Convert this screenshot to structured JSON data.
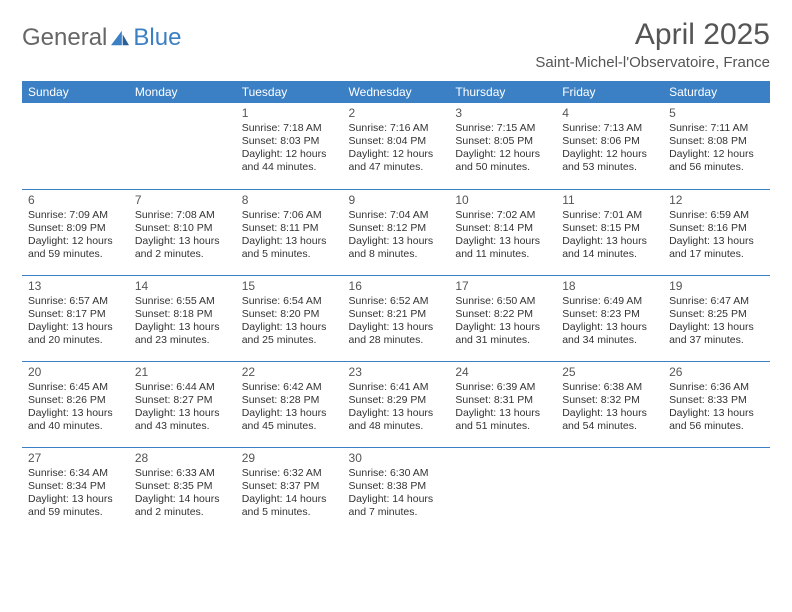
{
  "brand": {
    "part1": "General",
    "part2": "Blue"
  },
  "title": "April 2025",
  "location": "Saint-Michel-l'Observatoire, France",
  "colors": {
    "header_bg": "#3b7fc4",
    "header_text": "#ffffff",
    "body_text": "#333333",
    "title_text": "#555555",
    "rule": "#3b7fc4",
    "page_bg": "#ffffff"
  },
  "day_headers": [
    "Sunday",
    "Monday",
    "Tuesday",
    "Wednesday",
    "Thursday",
    "Friday",
    "Saturday"
  ],
  "weeks": [
    [
      null,
      null,
      {
        "n": "1",
        "sr": "Sunrise: 7:18 AM",
        "ss": "Sunset: 8:03 PM",
        "d1": "Daylight: 12 hours",
        "d2": "and 44 minutes."
      },
      {
        "n": "2",
        "sr": "Sunrise: 7:16 AM",
        "ss": "Sunset: 8:04 PM",
        "d1": "Daylight: 12 hours",
        "d2": "and 47 minutes."
      },
      {
        "n": "3",
        "sr": "Sunrise: 7:15 AM",
        "ss": "Sunset: 8:05 PM",
        "d1": "Daylight: 12 hours",
        "d2": "and 50 minutes."
      },
      {
        "n": "4",
        "sr": "Sunrise: 7:13 AM",
        "ss": "Sunset: 8:06 PM",
        "d1": "Daylight: 12 hours",
        "d2": "and 53 minutes."
      },
      {
        "n": "5",
        "sr": "Sunrise: 7:11 AM",
        "ss": "Sunset: 8:08 PM",
        "d1": "Daylight: 12 hours",
        "d2": "and 56 minutes."
      }
    ],
    [
      {
        "n": "6",
        "sr": "Sunrise: 7:09 AM",
        "ss": "Sunset: 8:09 PM",
        "d1": "Daylight: 12 hours",
        "d2": "and 59 minutes."
      },
      {
        "n": "7",
        "sr": "Sunrise: 7:08 AM",
        "ss": "Sunset: 8:10 PM",
        "d1": "Daylight: 13 hours",
        "d2": "and 2 minutes."
      },
      {
        "n": "8",
        "sr": "Sunrise: 7:06 AM",
        "ss": "Sunset: 8:11 PM",
        "d1": "Daylight: 13 hours",
        "d2": "and 5 minutes."
      },
      {
        "n": "9",
        "sr": "Sunrise: 7:04 AM",
        "ss": "Sunset: 8:12 PM",
        "d1": "Daylight: 13 hours",
        "d2": "and 8 minutes."
      },
      {
        "n": "10",
        "sr": "Sunrise: 7:02 AM",
        "ss": "Sunset: 8:14 PM",
        "d1": "Daylight: 13 hours",
        "d2": "and 11 minutes."
      },
      {
        "n": "11",
        "sr": "Sunrise: 7:01 AM",
        "ss": "Sunset: 8:15 PM",
        "d1": "Daylight: 13 hours",
        "d2": "and 14 minutes."
      },
      {
        "n": "12",
        "sr": "Sunrise: 6:59 AM",
        "ss": "Sunset: 8:16 PM",
        "d1": "Daylight: 13 hours",
        "d2": "and 17 minutes."
      }
    ],
    [
      {
        "n": "13",
        "sr": "Sunrise: 6:57 AM",
        "ss": "Sunset: 8:17 PM",
        "d1": "Daylight: 13 hours",
        "d2": "and 20 minutes."
      },
      {
        "n": "14",
        "sr": "Sunrise: 6:55 AM",
        "ss": "Sunset: 8:18 PM",
        "d1": "Daylight: 13 hours",
        "d2": "and 23 minutes."
      },
      {
        "n": "15",
        "sr": "Sunrise: 6:54 AM",
        "ss": "Sunset: 8:20 PM",
        "d1": "Daylight: 13 hours",
        "d2": "and 25 minutes."
      },
      {
        "n": "16",
        "sr": "Sunrise: 6:52 AM",
        "ss": "Sunset: 8:21 PM",
        "d1": "Daylight: 13 hours",
        "d2": "and 28 minutes."
      },
      {
        "n": "17",
        "sr": "Sunrise: 6:50 AM",
        "ss": "Sunset: 8:22 PM",
        "d1": "Daylight: 13 hours",
        "d2": "and 31 minutes."
      },
      {
        "n": "18",
        "sr": "Sunrise: 6:49 AM",
        "ss": "Sunset: 8:23 PM",
        "d1": "Daylight: 13 hours",
        "d2": "and 34 minutes."
      },
      {
        "n": "19",
        "sr": "Sunrise: 6:47 AM",
        "ss": "Sunset: 8:25 PM",
        "d1": "Daylight: 13 hours",
        "d2": "and 37 minutes."
      }
    ],
    [
      {
        "n": "20",
        "sr": "Sunrise: 6:45 AM",
        "ss": "Sunset: 8:26 PM",
        "d1": "Daylight: 13 hours",
        "d2": "and 40 minutes."
      },
      {
        "n": "21",
        "sr": "Sunrise: 6:44 AM",
        "ss": "Sunset: 8:27 PM",
        "d1": "Daylight: 13 hours",
        "d2": "and 43 minutes."
      },
      {
        "n": "22",
        "sr": "Sunrise: 6:42 AM",
        "ss": "Sunset: 8:28 PM",
        "d1": "Daylight: 13 hours",
        "d2": "and 45 minutes."
      },
      {
        "n": "23",
        "sr": "Sunrise: 6:41 AM",
        "ss": "Sunset: 8:29 PM",
        "d1": "Daylight: 13 hours",
        "d2": "and 48 minutes."
      },
      {
        "n": "24",
        "sr": "Sunrise: 6:39 AM",
        "ss": "Sunset: 8:31 PM",
        "d1": "Daylight: 13 hours",
        "d2": "and 51 minutes."
      },
      {
        "n": "25",
        "sr": "Sunrise: 6:38 AM",
        "ss": "Sunset: 8:32 PM",
        "d1": "Daylight: 13 hours",
        "d2": "and 54 minutes."
      },
      {
        "n": "26",
        "sr": "Sunrise: 6:36 AM",
        "ss": "Sunset: 8:33 PM",
        "d1": "Daylight: 13 hours",
        "d2": "and 56 minutes."
      }
    ],
    [
      {
        "n": "27",
        "sr": "Sunrise: 6:34 AM",
        "ss": "Sunset: 8:34 PM",
        "d1": "Daylight: 13 hours",
        "d2": "and 59 minutes."
      },
      {
        "n": "28",
        "sr": "Sunrise: 6:33 AM",
        "ss": "Sunset: 8:35 PM",
        "d1": "Daylight: 14 hours",
        "d2": "and 2 minutes."
      },
      {
        "n": "29",
        "sr": "Sunrise: 6:32 AM",
        "ss": "Sunset: 8:37 PM",
        "d1": "Daylight: 14 hours",
        "d2": "and 5 minutes."
      },
      {
        "n": "30",
        "sr": "Sunrise: 6:30 AM",
        "ss": "Sunset: 8:38 PM",
        "d1": "Daylight: 14 hours",
        "d2": "and 7 minutes."
      },
      null,
      null,
      null
    ]
  ]
}
